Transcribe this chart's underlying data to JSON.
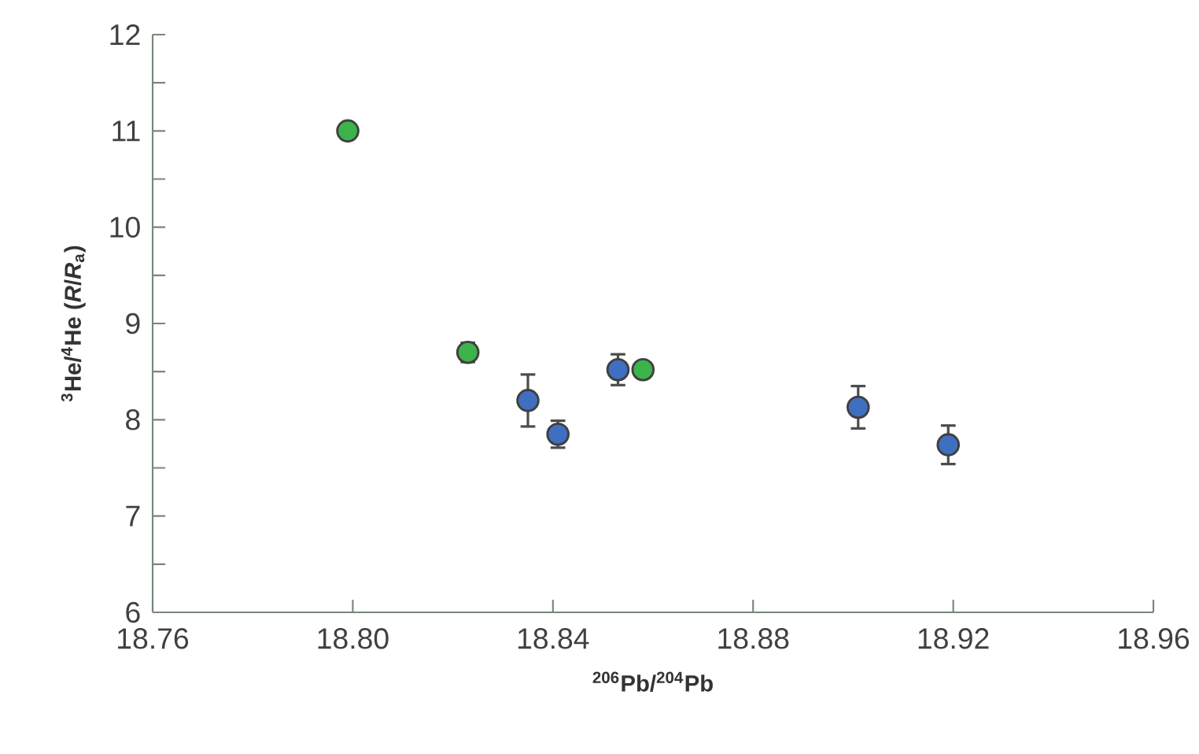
{
  "chart_data": {
    "type": "scatter",
    "xlabel": "$^{206}$Pb/$^{204}$Pb",
    "ylabel": "$^{3}$He/$^{4}$He (*R*/*R*$_{a}$)",
    "xlim": [
      18.76,
      18.96
    ],
    "xticks": [
      {
        "value": 18.76,
        "label": "18.76"
      },
      {
        "value": 18.8,
        "label": "18.80"
      },
      {
        "value": 18.84,
        "label": "18.84"
      },
      {
        "value": 18.88,
        "label": "18.88"
      },
      {
        "value": 18.92,
        "label": "18.92"
      },
      {
        "value": 18.96,
        "label": "18.96"
      }
    ],
    "ylim": [
      6,
      12
    ],
    "yticks": [
      6,
      {
        "value": 6.5,
        "label": null
      },
      7,
      {
        "value": 7.5,
        "label": null
      },
      8,
      {
        "value": 8.5,
        "label": null
      },
      9,
      {
        "value": 9.5,
        "label": null
      },
      10,
      {
        "value": 10.5,
        "label": null
      },
      11,
      {
        "value": 11.5,
        "label": null
      },
      12
    ],
    "marker": "circle",
    "grid": false,
    "series": [
      {
        "color": "#3cb44b",
        "x": [
          18.799,
          18.823,
          18.858
        ],
        "values": [
          11.0,
          8.7,
          8.52
        ],
        "errors": [
          null,
          0.1,
          null
        ]
      },
      {
        "color": "#3f6fc0",
        "x": [
          18.835,
          18.841,
          18.853,
          18.901,
          18.919
        ],
        "values": [
          8.2,
          7.85,
          8.52,
          8.13,
          7.74
        ],
        "errors": [
          0.27,
          0.14,
          0.16,
          0.22,
          0.2
        ]
      }
    ]
  }
}
